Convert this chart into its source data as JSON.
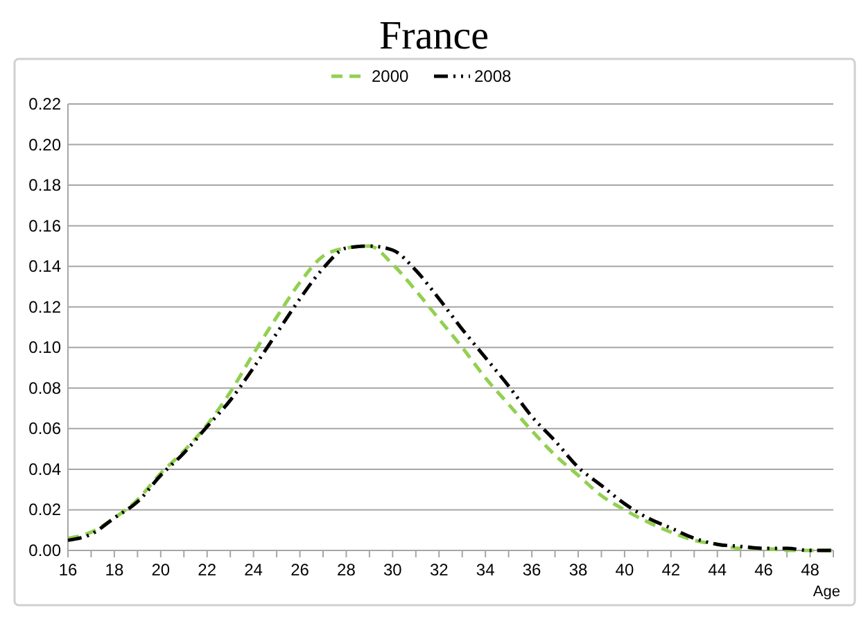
{
  "chart_data": {
    "type": "line",
    "title": "France",
    "xlabel": "Age",
    "x": [
      16,
      17,
      18,
      19,
      20,
      21,
      22,
      23,
      24,
      25,
      26,
      27,
      28,
      29,
      30,
      31,
      32,
      33,
      34,
      35,
      36,
      37,
      38,
      39,
      40,
      41,
      42,
      43,
      44,
      45,
      46,
      47,
      48,
      49
    ],
    "series": [
      {
        "name": "2000",
        "color": "#92d050",
        "line_style": "dashed",
        "values": [
          0.006,
          0.009,
          0.016,
          0.025,
          0.038,
          0.049,
          0.062,
          0.078,
          0.097,
          0.115,
          0.132,
          0.145,
          0.149,
          0.15,
          0.141,
          0.128,
          0.114,
          0.1,
          0.085,
          0.072,
          0.059,
          0.047,
          0.037,
          0.027,
          0.02,
          0.014,
          0.009,
          0.005,
          0.003,
          0.001,
          0.001,
          0.0,
          0.0,
          0.0
        ]
      },
      {
        "name": "2008",
        "color": "#000000",
        "line_style": "dashdot",
        "values": [
          0.005,
          0.008,
          0.016,
          0.024,
          0.037,
          0.048,
          0.061,
          0.074,
          0.09,
          0.107,
          0.124,
          0.139,
          0.149,
          0.15,
          0.148,
          0.138,
          0.124,
          0.109,
          0.095,
          0.081,
          0.066,
          0.054,
          0.041,
          0.032,
          0.023,
          0.016,
          0.011,
          0.006,
          0.003,
          0.002,
          0.001,
          0.001,
          0.0,
          0.0
        ]
      }
    ],
    "xlim": [
      16,
      49
    ],
    "ylim": [
      0,
      0.22
    ],
    "xticks": [
      16,
      {
        "value": 17,
        "label": null
      },
      18,
      {
        "value": 19,
        "label": null
      },
      20,
      {
        "value": 21,
        "label": null
      },
      22,
      {
        "value": 23,
        "label": null
      },
      24,
      {
        "value": 25,
        "label": null
      },
      26,
      {
        "value": 27,
        "label": null
      },
      28,
      {
        "value": 29,
        "label": null
      },
      30,
      {
        "value": 31,
        "label": null
      },
      32,
      {
        "value": 33,
        "label": null
      },
      34,
      {
        "value": 35,
        "label": null
      },
      36,
      {
        "value": 37,
        "label": null
      },
      38,
      {
        "value": 39,
        "label": null
      },
      40,
      {
        "value": 41,
        "label": null
      },
      42,
      {
        "value": 43,
        "label": null
      },
      44,
      {
        "value": 45,
        "label": null
      },
      46,
      {
        "value": 47,
        "label": null
      },
      48,
      {
        "value": 49,
        "label": null
      }
    ],
    "yticks": [
      {
        "value": 0,
        "label": "0.00"
      },
      {
        "value": 0.02,
        "label": "0.02"
      },
      {
        "value": 0.04,
        "label": "0.04"
      },
      {
        "value": 0.06,
        "label": "0.06"
      },
      {
        "value": 0.08,
        "label": "0.08"
      },
      {
        "value": 0.1,
        "label": "0.10"
      },
      {
        "value": 0.12,
        "label": "0.12"
      },
      {
        "value": 0.14,
        "label": "0.14"
      },
      {
        "value": 0.16,
        "label": "0.16"
      },
      {
        "value": 0.18,
        "label": "0.18"
      },
      {
        "value": 0.2,
        "label": "0.20"
      },
      {
        "value": 0.22,
        "label": "0.22"
      }
    ],
    "grid": "y",
    "legend": "top"
  }
}
